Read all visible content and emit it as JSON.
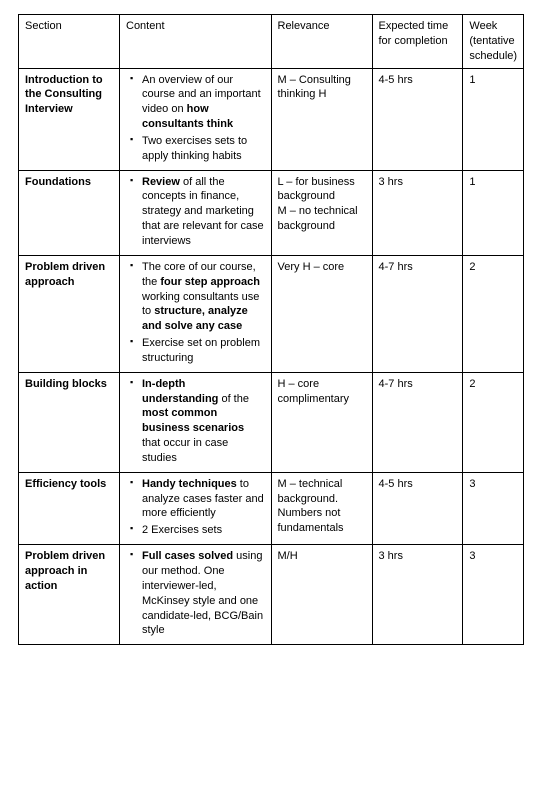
{
  "table": {
    "columns": [
      {
        "key": "section",
        "label": "Section",
        "width_pct": 20
      },
      {
        "key": "content",
        "label": "Content",
        "width_pct": 30
      },
      {
        "key": "relevance",
        "label": "Relevance",
        "width_pct": 20
      },
      {
        "key": "time",
        "label": "Expected time for completion",
        "width_pct": 18
      },
      {
        "key": "week",
        "label": "Week (tentative schedule)",
        "width_pct": 12
      }
    ],
    "rows": [
      {
        "section": "Introduction to the Consulting Interview",
        "content": [
          {
            "runs": [
              {
                "t": "An overview of our course and an important video on "
              },
              {
                "t": "how consultants think",
                "b": true
              }
            ]
          },
          {
            "runs": [
              {
                "t": "Two exercises sets to apply thinking habits"
              }
            ]
          }
        ],
        "relevance": "M – Consulting thinking H",
        "time": "4-5 hrs",
        "week": "1"
      },
      {
        "section": "Foundations",
        "content": [
          {
            "runs": [
              {
                "t": "Review",
                "b": true
              },
              {
                "t": " of all the concepts in finance, strategy and marketing that are relevant for case interviews"
              }
            ]
          }
        ],
        "relevance": "L – for business background\nM – no technical background",
        "time": "3 hrs",
        "week": "1"
      },
      {
        "section": "Problem driven approach",
        "content": [
          {
            "runs": [
              {
                "t": "The core of our course, the "
              },
              {
                "t": "four step approach",
                "b": true
              },
              {
                "t": " working consultants use to "
              },
              {
                "t": "structure, analyze and solve any case",
                "b": true
              }
            ]
          },
          {
            "runs": [
              {
                "t": "Exercise set on problem structuring"
              }
            ]
          }
        ],
        "relevance": "Very H – core",
        "time": "4-7 hrs",
        "week": "2"
      },
      {
        "section": "Building blocks",
        "content": [
          {
            "runs": [
              {
                "t": "In-depth understanding",
                "b": true
              },
              {
                "t": " of the "
              },
              {
                "t": "most common business scenarios",
                "b": true
              },
              {
                "t": " that occur in case studies"
              }
            ]
          }
        ],
        "relevance": "H – core complimentary",
        "time": "4-7 hrs",
        "week": "2"
      },
      {
        "section": "Efficiency tools",
        "content": [
          {
            "runs": [
              {
                "t": "Handy techniques",
                "b": true
              },
              {
                "t": " to analyze cases faster and more efficiently"
              }
            ]
          },
          {
            "runs": [
              {
                "t": "2 Exercises sets"
              }
            ]
          }
        ],
        "relevance": "M – technical background. Numbers not fundamentals",
        "time": "4-5 hrs",
        "week": "3"
      },
      {
        "section": "Problem driven approach in action",
        "content": [
          {
            "runs": [
              {
                "t": "Full cases solved",
                "b": true
              },
              {
                "t": " using our method. One interviewer-led, McKinsey style and one candidate-led, BCG/Bain style"
              }
            ]
          }
        ],
        "relevance": "M/H",
        "time": "3 hrs",
        "week": "3"
      }
    ],
    "style": {
      "font_family": "Arial",
      "font_size_pt": 11,
      "text_color": "#000000",
      "border_color": "#000000",
      "background_color": "#ffffff",
      "bullet_glyph": "▪"
    }
  }
}
